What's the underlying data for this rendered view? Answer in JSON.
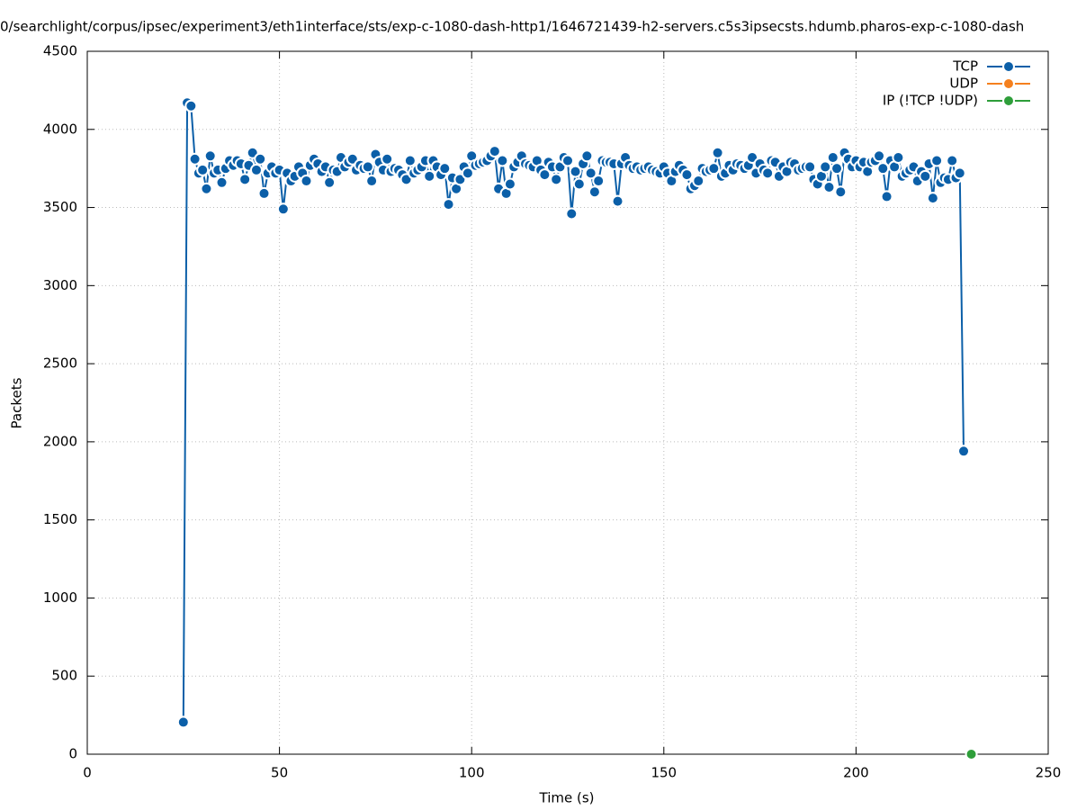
{
  "chart_data": {
    "type": "line",
    "title": "0/searchlight/corpus/ipsec/experiment3/eth1interface/sts/exp-c-1080-dash-http1/1646721439-h2-servers.c5s3ipsecsts.hdumb.pharos-exp-c-1080-dash",
    "xlabel": "Time (s)",
    "ylabel": "Packets",
    "xlim": [
      0,
      250
    ],
    "xticks": [
      0,
      50,
      100,
      150,
      200,
      250
    ],
    "ylim": [
      0,
      4500
    ],
    "yticks": [
      0,
      500,
      1000,
      1500,
      2000,
      2500,
      3000,
      3500,
      4000,
      4500
    ],
    "grid": true,
    "legend": "upper right",
    "series": [
      {
        "name": "TCP",
        "color": "#0b5fa8",
        "x": [
          25,
          26,
          27,
          28,
          29,
          30,
          31,
          32,
          33,
          34,
          35,
          36,
          37,
          38,
          39,
          40,
          41,
          42,
          43,
          44,
          45,
          46,
          47,
          48,
          49,
          50,
          51,
          52,
          53,
          54,
          55,
          56,
          57,
          58,
          59,
          60,
          61,
          62,
          63,
          64,
          65,
          66,
          67,
          68,
          69,
          70,
          71,
          72,
          73,
          74,
          75,
          76,
          77,
          78,
          79,
          80,
          81,
          82,
          83,
          84,
          85,
          86,
          87,
          88,
          89,
          90,
          91,
          92,
          93,
          94,
          95,
          96,
          97,
          98,
          99,
          100,
          101,
          102,
          103,
          104,
          105,
          106,
          107,
          108,
          109,
          110,
          111,
          112,
          113,
          114,
          115,
          116,
          117,
          118,
          119,
          120,
          121,
          122,
          123,
          124,
          125,
          126,
          127,
          128,
          129,
          130,
          131,
          132,
          133,
          134,
          135,
          136,
          137,
          138,
          139,
          140,
          141,
          142,
          143,
          144,
          145,
          146,
          147,
          148,
          149,
          150,
          151,
          152,
          153,
          154,
          155,
          156,
          157,
          158,
          159,
          160,
          161,
          162,
          163,
          164,
          165,
          166,
          167,
          168,
          169,
          170,
          171,
          172,
          173,
          174,
          175,
          176,
          177,
          178,
          179,
          180,
          181,
          182,
          183,
          184,
          185,
          186,
          187,
          188,
          189,
          190,
          191,
          192,
          193,
          194,
          195,
          196,
          197,
          198,
          199,
          200,
          201,
          202,
          203,
          204,
          205,
          206,
          207,
          208,
          209,
          210,
          211,
          212,
          213,
          214,
          215,
          216,
          217,
          218,
          219,
          220,
          221,
          222,
          223,
          224,
          225,
          226,
          227,
          228
        ],
        "values": [
          205,
          4170,
          4150,
          3810,
          3720,
          3740,
          3620,
          3830,
          3720,
          3740,
          3660,
          3750,
          3800,
          3770,
          3800,
          3780,
          3680,
          3770,
          3850,
          3740,
          3810,
          3590,
          3720,
          3760,
          3720,
          3740,
          3490,
          3720,
          3670,
          3700,
          3760,
          3720,
          3670,
          3770,
          3810,
          3780,
          3730,
          3760,
          3660,
          3740,
          3730,
          3820,
          3760,
          3790,
          3810,
          3740,
          3770,
          3750,
          3760,
          3670,
          3840,
          3790,
          3740,
          3810,
          3730,
          3750,
          3740,
          3710,
          3680,
          3800,
          3720,
          3740,
          3760,
          3800,
          3700,
          3800,
          3760,
          3710,
          3750,
          3520,
          3690,
          3620,
          3680,
          3760,
          3720,
          3830,
          3770,
          3780,
          3790,
          3800,
          3830,
          3860,
          3620,
          3800,
          3590,
          3650,
          3760,
          3790,
          3830,
          3780,
          3770,
          3760,
          3800,
          3740,
          3710,
          3790,
          3760,
          3680,
          3760,
          3820,
          3800,
          3460,
          3730,
          3650,
          3780,
          3830,
          3720,
          3600,
          3670,
          3800,
          3790,
          3790,
          3780,
          3540,
          3780,
          3820,
          3770,
          3750,
          3760,
          3740,
          3750,
          3760,
          3740,
          3730,
          3720,
          3760,
          3720,
          3670,
          3730,
          3770,
          3740,
          3710,
          3620,
          3640,
          3670,
          3750,
          3730,
          3740,
          3750,
          3850,
          3700,
          3720,
          3770,
          3740,
          3780,
          3770,
          3750,
          3770,
          3820,
          3720,
          3780,
          3740,
          3720,
          3800,
          3790,
          3700,
          3760,
          3730,
          3790,
          3780,
          3740,
          3750,
          3760,
          3760,
          3680,
          3650,
          3700,
          3760,
          3630,
          3820,
          3750,
          3600,
          3850,
          3810,
          3760,
          3800,
          3760,
          3790,
          3730,
          3790,
          3800,
          3830,
          3750,
          3570,
          3800,
          3760,
          3820,
          3700,
          3720,
          3740,
          3760,
          3670,
          3730,
          3700,
          3780,
          3560,
          3800,
          3660,
          3690,
          3680,
          3800,
          3690,
          3720,
          1940
        ]
      },
      {
        "name": "UDP",
        "color": "#f5801e",
        "x": [],
        "values": []
      },
      {
        "name": "IP (!TCP  !UDP)",
        "color": "#2e9e3a",
        "x": [
          230
        ],
        "values": [
          0
        ]
      }
    ]
  }
}
